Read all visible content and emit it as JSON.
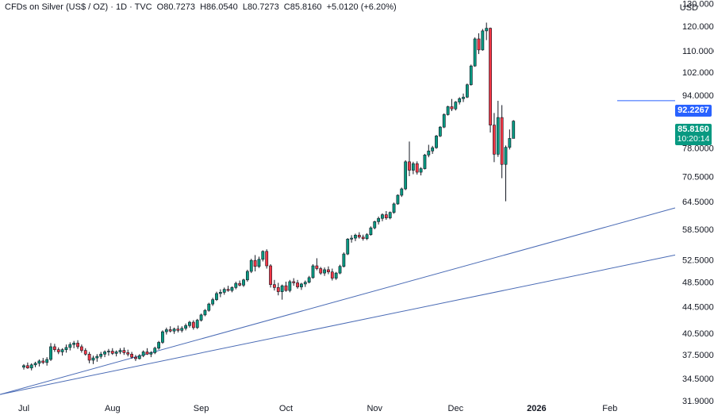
{
  "legend": {
    "symbol": "CFDs on Silver (US$ / OZ) · 1D · TVC",
    "open": "O80.7273",
    "high": "H86.0540",
    "low": "L80.7273",
    "close": "C85.8160",
    "change": "+5.0120 (+6.20%)"
  },
  "currency": "USD",
  "price_tag": {
    "value": "85.8160",
    "countdown": "10:20:14",
    "color": "#089981"
  },
  "level_tag": {
    "value": "92.2267",
    "color": "#2962ff"
  },
  "chart_data": {
    "type": "candlestick",
    "title": "CFDs on Silver (US$ / OZ) · 1D · TVC",
    "y_scale": "log",
    "ylim": [
      31,
      131
    ],
    "y_ticks": [
      "130.0000",
      "120.0000",
      "110.0000",
      "102.0000",
      "94.0000",
      "85.8160",
      "78.0000",
      "70.5000",
      "64.5000",
      "58.5000",
      "52.5000",
      "48.5000",
      "44.5000",
      "40.5000",
      "37.5000",
      "34.5000",
      "31.9000"
    ],
    "x_ticks": [
      "Jul",
      "Aug",
      "Sep",
      "Oct",
      "Nov",
      "Dec",
      "2026",
      "Feb"
    ],
    "x_tick_day_index": [
      0,
      23,
      46,
      68,
      91,
      112,
      133,
      152
    ],
    "up_color": "#089981",
    "down_color": "#f23645",
    "candles_ohlc": [
      [
        35.9,
        36.3,
        35.6,
        36.1
      ],
      [
        36.1,
        36.5,
        35.7,
        35.8
      ],
      [
        35.8,
        36.4,
        35.5,
        36.2
      ],
      [
        36.2,
        36.6,
        35.9,
        36.4
      ],
      [
        36.4,
        36.9,
        36.0,
        36.7
      ],
      [
        36.7,
        37.1,
        36.3,
        36.5
      ],
      [
        36.5,
        37.2,
        36.1,
        36.9
      ],
      [
        36.9,
        39.1,
        36.7,
        38.6
      ],
      [
        38.6,
        39.0,
        37.9,
        38.2
      ],
      [
        38.2,
        38.5,
        37.6,
        37.9
      ],
      [
        37.9,
        38.4,
        37.4,
        38.2
      ],
      [
        38.2,
        38.9,
        37.8,
        38.5
      ],
      [
        38.5,
        39.2,
        38.1,
        38.9
      ],
      [
        38.9,
        39.4,
        38.4,
        39.1
      ],
      [
        39.1,
        39.5,
        38.3,
        38.6
      ],
      [
        38.6,
        38.9,
        37.8,
        38.1
      ],
      [
        38.1,
        38.4,
        37.4,
        37.6
      ],
      [
        37.6,
        37.9,
        36.4,
        36.8
      ],
      [
        36.8,
        37.4,
        36.3,
        37.1
      ],
      [
        37.1,
        37.6,
        36.6,
        37.3
      ],
      [
        37.3,
        37.9,
        37.0,
        37.6
      ],
      [
        37.6,
        38.1,
        37.2,
        37.9
      ],
      [
        37.9,
        38.3,
        37.4,
        38.0
      ],
      [
        38.0,
        38.4,
        37.5,
        37.7
      ],
      [
        37.7,
        38.1,
        37.3,
        37.9
      ],
      [
        37.9,
        38.4,
        37.6,
        38.1
      ],
      [
        38.1,
        38.5,
        37.5,
        37.8
      ],
      [
        37.8,
        38.2,
        37.3,
        37.6
      ],
      [
        37.6,
        37.9,
        37.0,
        37.2
      ],
      [
        37.2,
        37.5,
        36.7,
        37.0
      ],
      [
        37.0,
        37.6,
        36.9,
        37.4
      ],
      [
        37.4,
        38.1,
        37.2,
        37.9
      ],
      [
        37.9,
        38.4,
        37.5,
        37.6
      ],
      [
        37.6,
        38.0,
        37.2,
        37.8
      ],
      [
        37.8,
        38.6,
        37.6,
        38.4
      ],
      [
        38.4,
        39.4,
        38.2,
        39.2
      ],
      [
        39.2,
        40.9,
        39.0,
        40.7
      ],
      [
        40.7,
        41.3,
        40.3,
        41.0
      ],
      [
        41.0,
        41.5,
        40.6,
        40.8
      ],
      [
        40.8,
        41.3,
        40.4,
        41.1
      ],
      [
        41.1,
        41.6,
        40.6,
        40.9
      ],
      [
        40.9,
        41.5,
        40.6,
        41.2
      ],
      [
        41.2,
        41.9,
        40.9,
        41.6
      ],
      [
        41.6,
        42.3,
        41.3,
        42.1
      ],
      [
        42.1,
        42.4,
        41.0,
        41.3
      ],
      [
        41.3,
        42.6,
        41.1,
        42.4
      ],
      [
        42.4,
        43.4,
        42.2,
        43.2
      ],
      [
        43.2,
        44.1,
        43.0,
        43.9
      ],
      [
        43.9,
        45.1,
        43.7,
        44.9
      ],
      [
        44.9,
        45.9,
        44.6,
        45.6
      ],
      [
        45.6,
        46.9,
        45.4,
        46.6
      ],
      [
        46.6,
        47.3,
        46.0,
        46.8
      ],
      [
        46.8,
        47.6,
        46.4,
        47.3
      ],
      [
        47.3,
        47.9,
        46.9,
        47.1
      ],
      [
        47.1,
        47.8,
        46.8,
        47.6
      ],
      [
        47.6,
        48.6,
        47.3,
        48.3
      ],
      [
        48.3,
        48.8,
        47.8,
        48.0
      ],
      [
        48.0,
        49.1,
        47.7,
        48.9
      ],
      [
        48.9,
        50.7,
        48.6,
        50.4
      ],
      [
        50.4,
        52.7,
        50.1,
        52.4
      ],
      [
        52.4,
        53.4,
        50.4,
        51.3
      ],
      [
        51.3,
        53.1,
        51.0,
        52.6
      ],
      [
        52.6,
        54.3,
        52.2,
        54.1
      ],
      [
        54.1,
        54.5,
        50.9,
        51.4
      ],
      [
        51.4,
        51.7,
        47.6,
        48.1
      ],
      [
        48.1,
        48.9,
        47.1,
        47.6
      ],
      [
        47.6,
        48.4,
        46.3,
        46.9
      ],
      [
        46.9,
        48.1,
        45.6,
        47.9
      ],
      [
        47.9,
        48.6,
        46.9,
        47.1
      ],
      [
        47.1,
        48.9,
        46.8,
        48.6
      ],
      [
        48.6,
        49.2,
        47.9,
        48.4
      ],
      [
        48.4,
        48.9,
        47.4,
        47.7
      ],
      [
        47.7,
        48.4,
        47.2,
        48.2
      ],
      [
        48.2,
        48.8,
        47.7,
        48.5
      ],
      [
        48.5,
        49.6,
        48.3,
        49.3
      ],
      [
        49.3,
        51.7,
        49.1,
        51.4
      ],
      [
        51.4,
        52.8,
        50.6,
        50.9
      ],
      [
        50.9,
        51.2,
        49.8,
        50.1
      ],
      [
        50.1,
        51.1,
        49.6,
        50.7
      ],
      [
        50.7,
        51.3,
        49.9,
        50.3
      ],
      [
        50.3,
        50.9,
        48.8,
        49.2
      ],
      [
        49.2,
        50.3,
        48.9,
        50.1
      ],
      [
        50.1,
        51.6,
        49.9,
        51.3
      ],
      [
        51.3,
        53.9,
        51.1,
        53.6
      ],
      [
        53.6,
        56.7,
        53.4,
        56.5
      ],
      [
        56.5,
        57.3,
        55.8,
        56.7
      ],
      [
        56.7,
        57.6,
        56.1,
        57.3
      ],
      [
        57.3,
        57.9,
        56.6,
        56.9
      ],
      [
        56.9,
        57.4,
        56.2,
        56.6
      ],
      [
        56.6,
        57.7,
        56.3,
        57.4
      ],
      [
        57.4,
        59.1,
        57.2,
        58.8
      ],
      [
        58.8,
        60.3,
        58.5,
        60.1
      ],
      [
        60.1,
        61.2,
        59.5,
        60.8
      ],
      [
        60.8,
        61.9,
        60.2,
        61.6
      ],
      [
        61.6,
        62.4,
        60.5,
        60.9
      ],
      [
        60.9,
        62.3,
        60.6,
        62.1
      ],
      [
        62.1,
        64.3,
        61.8,
        64.0
      ],
      [
        64.0,
        66.2,
        63.8,
        66.0
      ],
      [
        66.0,
        67.8,
        65.6,
        67.5
      ],
      [
        67.5,
        74.7,
        67.2,
        74.3
      ],
      [
        74.3,
        79.8,
        70.6,
        72.1
      ],
      [
        72.1,
        74.3,
        71.1,
        73.8
      ],
      [
        73.8,
        74.4,
        71.0,
        71.6
      ],
      [
        71.6,
        72.9,
        70.8,
        72.5
      ],
      [
        72.5,
        76.4,
        72.3,
        76.1
      ],
      [
        76.1,
        78.9,
        75.5,
        77.2
      ],
      [
        77.2,
        78.6,
        76.4,
        78.1
      ],
      [
        78.1,
        81.7,
        77.8,
        81.4
      ],
      [
        81.4,
        84.3,
        81.1,
        84.0
      ],
      [
        84.0,
        88.2,
        83.7,
        87.8
      ],
      [
        87.8,
        90.6,
        87.5,
        90.3
      ],
      [
        90.3,
        92.8,
        88.9,
        89.6
      ],
      [
        89.6,
        92.1,
        89.1,
        91.8
      ],
      [
        91.8,
        93.4,
        91.0,
        92.9
      ],
      [
        92.9,
        94.6,
        91.8,
        93.4
      ],
      [
        93.4,
        98.0,
        93.1,
        97.6
      ],
      [
        97.6,
        104.8,
        97.3,
        104.3
      ],
      [
        104.3,
        115.4,
        104.0,
        114.8
      ],
      [
        114.8,
        117.1,
        108.8,
        110.4
      ],
      [
        110.4,
        118.9,
        110.1,
        118.1
      ],
      [
        118.1,
        121.6,
        114.3,
        119.2
      ],
      [
        119.2,
        119.5,
        82.4,
        84.6
      ],
      [
        84.6,
        88.3,
        74.2,
        76.3
      ],
      [
        76.3,
        92.2,
        75.6,
        86.9
      ],
      [
        86.9,
        90.8,
        70.1,
        73.6
      ],
      [
        73.6,
        78.7,
        64.6,
        78.2
      ],
      [
        78.2,
        83.3,
        77.6,
        80.7
      ],
      [
        80.7,
        86.1,
        80.7,
        85.8
      ]
    ],
    "trendlines": [
      {
        "from": [
          "day 0",
          32.6
        ],
        "to": [
          "day 162",
          63.1
        ]
      },
      {
        "from": [
          "day 0",
          32.6
        ],
        "to": [
          "day 162",
          53.4
        ]
      }
    ],
    "horizontal_level": 92.2267
  }
}
